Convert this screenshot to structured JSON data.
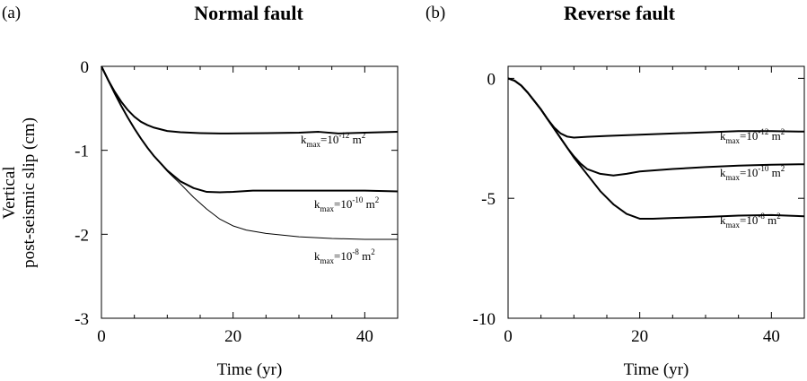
{
  "ylabel_line1": "Vertical",
  "ylabel_line2": "post-seismic slip (cm)",
  "chart_data": [
    {
      "type": "line",
      "panel_label": "(a)",
      "title": "Normal fault",
      "xlabel": "Time (yr)",
      "ylabel": "Vertical post-seismic slip (cm)",
      "xlim": [
        0,
        45
      ],
      "ylim": [
        -3,
        0
      ],
      "xticks": [
        0,
        20,
        40
      ],
      "xtick_labels": [
        "0",
        "20",
        "40"
      ],
      "yticks": [
        0,
        -1,
        -2,
        -3
      ],
      "ytick_labels": [
        "0",
        "-1",
        "-2",
        "-3"
      ],
      "series": [
        {
          "label_main": "k",
          "label_sub": "max",
          "label_mid": "=10",
          "label_sup": "-12",
          "label_end": " m",
          "label_unit_sup": "2",
          "stroke_width": 2.0,
          "points": [
            [
              0,
              0
            ],
            [
              1,
              -0.16
            ],
            [
              2,
              -0.3
            ],
            [
              3,
              -0.42
            ],
            [
              4,
              -0.52
            ],
            [
              5,
              -0.6
            ],
            [
              6,
              -0.66
            ],
            [
              7,
              -0.7
            ],
            [
              8,
              -0.73
            ],
            [
              9,
              -0.75
            ],
            [
              10,
              -0.77
            ],
            [
              12,
              -0.785
            ],
            [
              15,
              -0.795
            ],
            [
              18,
              -0.8
            ],
            [
              21,
              -0.798
            ],
            [
              25,
              -0.795
            ],
            [
              30,
              -0.79
            ],
            [
              33,
              -0.78
            ],
            [
              36,
              -0.8
            ],
            [
              40,
              -0.79
            ],
            [
              45,
              -0.78
            ]
          ]
        },
        {
          "label_main": "k",
          "label_sub": "max",
          "label_mid": "=10",
          "label_sup": "-10",
          "label_end": " m",
          "label_unit_sup": "2",
          "stroke_width": 2.0,
          "points": [
            [
              0,
              0
            ],
            [
              1,
              -0.16
            ],
            [
              2,
              -0.32
            ],
            [
              3,
              -0.47
            ],
            [
              4,
              -0.61
            ],
            [
              5,
              -0.74
            ],
            [
              6,
              -0.86
            ],
            [
              7,
              -0.97
            ],
            [
              8,
              -1.07
            ],
            [
              10,
              -1.24
            ],
            [
              12,
              -1.37
            ],
            [
              14,
              -1.45
            ],
            [
              16,
              -1.495
            ],
            [
              18,
              -1.5
            ],
            [
              20,
              -1.495
            ],
            [
              23,
              -1.48
            ],
            [
              30,
              -1.48
            ],
            [
              40,
              -1.48
            ],
            [
              45,
              -1.49
            ]
          ]
        },
        {
          "label_main": "k",
          "label_sub": "max",
          "label_mid": "=10",
          "label_sup": "-8",
          "label_end": " m",
          "label_unit_sup": "2",
          "stroke_width": 1.0,
          "points": [
            [
              0,
              0
            ],
            [
              1,
              -0.16
            ],
            [
              2,
              -0.32
            ],
            [
              3,
              -0.47
            ],
            [
              4,
              -0.61
            ],
            [
              5,
              -0.74
            ],
            [
              6,
              -0.86
            ],
            [
              7,
              -0.97
            ],
            [
              8,
              -1.07
            ],
            [
              10,
              -1.25
            ],
            [
              12,
              -1.4
            ],
            [
              14,
              -1.56
            ],
            [
              16,
              -1.7
            ],
            [
              18,
              -1.82
            ],
            [
              20,
              -1.9
            ],
            [
              22,
              -1.95
            ],
            [
              25,
              -1.99
            ],
            [
              30,
              -2.03
            ],
            [
              35,
              -2.05
            ],
            [
              40,
              -2.06
            ],
            [
              45,
              -2.06
            ]
          ]
        }
      ]
    },
    {
      "type": "line",
      "panel_label": "(b)",
      "title": "Reverse fault",
      "xlabel": "Time (yr)",
      "ylabel": "",
      "xlim": [
        0,
        45
      ],
      "ylim": [
        -10,
        0.5
      ],
      "xticks": [
        0,
        20,
        40
      ],
      "xtick_labels": [
        "0",
        "20",
        "40"
      ],
      "yticks": [
        0,
        -5,
        -10
      ],
      "ytick_labels": [
        "0",
        "-5",
        "-10"
      ],
      "series": [
        {
          "label_main": "k",
          "label_sub": "max",
          "label_mid": "=10",
          "label_sup": "-12",
          "label_end": " m",
          "label_unit_sup": "2",
          "stroke_width": 2.0,
          "points": [
            [
              0,
              0
            ],
            [
              1,
              -0.1
            ],
            [
              2,
              -0.3
            ],
            [
              3,
              -0.6
            ],
            [
              4,
              -0.95
            ],
            [
              5,
              -1.3
            ],
            [
              6,
              -1.7
            ],
            [
              7,
              -2.05
            ],
            [
              8,
              -2.3
            ],
            [
              9,
              -2.43
            ],
            [
              10,
              -2.47
            ],
            [
              12,
              -2.44
            ],
            [
              15,
              -2.4
            ],
            [
              20,
              -2.35
            ],
            [
              25,
              -2.3
            ],
            [
              30,
              -2.25
            ],
            [
              35,
              -2.2
            ],
            [
              40,
              -2.2
            ],
            [
              45,
              -2.22
            ]
          ]
        },
        {
          "label_main": "k",
          "label_sub": "max",
          "label_mid": "=10",
          "label_sup": "-10",
          "label_end": " m",
          "label_unit_sup": "2",
          "stroke_width": 2.0,
          "points": [
            [
              0,
              0
            ],
            [
              1,
              -0.1
            ],
            [
              2,
              -0.3
            ],
            [
              3,
              -0.6
            ],
            [
              4,
              -0.95
            ],
            [
              5,
              -1.3
            ],
            [
              6,
              -1.7
            ],
            [
              7,
              -2.1
            ],
            [
              8,
              -2.5
            ],
            [
              9,
              -2.9
            ],
            [
              10,
              -3.25
            ],
            [
              11,
              -3.55
            ],
            [
              12,
              -3.78
            ],
            [
              14,
              -3.98
            ],
            [
              16,
              -4.05
            ],
            [
              18,
              -3.98
            ],
            [
              20,
              -3.88
            ],
            [
              25,
              -3.78
            ],
            [
              30,
              -3.7
            ],
            [
              35,
              -3.64
            ],
            [
              40,
              -3.6
            ],
            [
              45,
              -3.58
            ]
          ]
        },
        {
          "label_main": "k",
          "label_sub": "max",
          "label_mid": "=10",
          "label_sup": "-8",
          "label_end": " m",
          "label_unit_sup": "2",
          "stroke_width": 2.0,
          "points": [
            [
              0,
              0
            ],
            [
              1,
              -0.1
            ],
            [
              2,
              -0.3
            ],
            [
              3,
              -0.6
            ],
            [
              4,
              -0.95
            ],
            [
              5,
              -1.3
            ],
            [
              6,
              -1.7
            ],
            [
              7,
              -2.1
            ],
            [
              8,
              -2.5
            ],
            [
              9,
              -2.9
            ],
            [
              10,
              -3.3
            ],
            [
              12,
              -4.0
            ],
            [
              14,
              -4.7
            ],
            [
              16,
              -5.25
            ],
            [
              18,
              -5.65
            ],
            [
              20,
              -5.85
            ],
            [
              22,
              -5.85
            ],
            [
              25,
              -5.82
            ],
            [
              30,
              -5.78
            ],
            [
              35,
              -5.72
            ],
            [
              40,
              -5.7
            ],
            [
              45,
              -5.75
            ]
          ]
        }
      ]
    }
  ]
}
